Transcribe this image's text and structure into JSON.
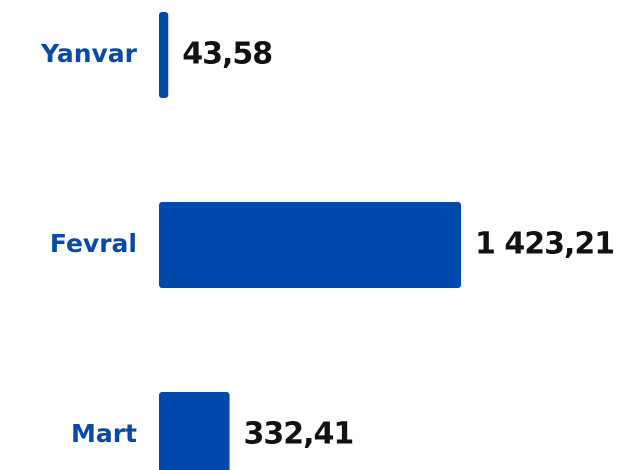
{
  "chart_data": {
    "type": "bar",
    "orientation": "horizontal",
    "categories": [
      "Yanvar",
      "Fevral",
      "Mart"
    ],
    "values": [
      43.58,
      1423.21,
      332.41
    ],
    "value_labels": [
      "43,58",
      "1 423,21",
      "332,41"
    ],
    "color": "#004aad"
  }
}
